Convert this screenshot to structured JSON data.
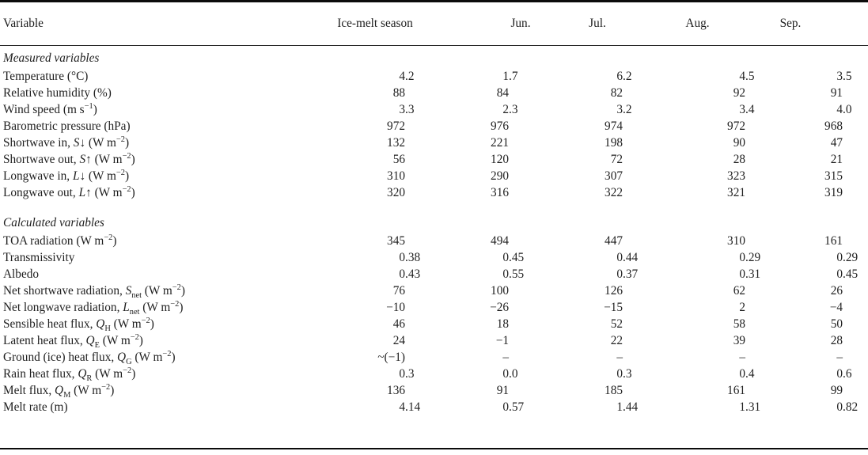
{
  "colors": {
    "text": "#1f1f1f",
    "rule": "#0c0c0c",
    "background": "#ffffff"
  },
  "table": {
    "columns": [
      "Variable",
      "Ice-melt season",
      "Jun.",
      "Jul.",
      "Aug.",
      "Sep."
    ],
    "sections": [
      {
        "title": "Measured variables",
        "rows": [
          {
            "label": [
              [
                "",
                "Temperature (°C)"
              ]
            ],
            "values": [
              "4.2",
              "1.7",
              "6.2",
              "4.5",
              "3.5"
            ]
          },
          {
            "label": [
              [
                "",
                "Relative humidity (%)"
              ]
            ],
            "values": [
              "88",
              "84",
              "82",
              "92",
              "91"
            ]
          },
          {
            "label": [
              [
                "",
                "Wind speed (m s"
              ],
              [
                "sup",
                "−1"
              ],
              [
                "",
                ")"
              ]
            ],
            "values": [
              "3.3",
              "2.3",
              "3.2",
              "3.4",
              "4.0"
            ]
          },
          {
            "label": [
              [
                "",
                "Barometric pressure (hPa)"
              ]
            ],
            "values": [
              "972",
              "976",
              "974",
              "972",
              "968"
            ]
          },
          {
            "label": [
              [
                "",
                "Shortwave in, "
              ],
              [
                "i",
                "S"
              ],
              [
                "",
                "↓ (W m"
              ],
              [
                "sup",
                "−2"
              ],
              [
                "",
                ")"
              ]
            ],
            "values": [
              "132",
              "221",
              "198",
              "90",
              "47"
            ]
          },
          {
            "label": [
              [
                "",
                "Shortwave out, "
              ],
              [
                "i",
                "S"
              ],
              [
                "",
                "↑ (W m"
              ],
              [
                "sup",
                "−2"
              ],
              [
                "",
                ")"
              ]
            ],
            "values": [
              "56",
              "120",
              "72",
              "28",
              "21"
            ]
          },
          {
            "label": [
              [
                "",
                "Longwave in, "
              ],
              [
                "i",
                "L"
              ],
              [
                "",
                "↓ (W m"
              ],
              [
                "sup",
                "−2"
              ],
              [
                "",
                ")"
              ]
            ],
            "values": [
              "310",
              "290",
              "307",
              "323",
              "315"
            ]
          },
          {
            "label": [
              [
                "",
                "Longwave out, "
              ],
              [
                "i",
                "L"
              ],
              [
                "",
                "↑ (W m"
              ],
              [
                "sup",
                "−2"
              ],
              [
                "",
                ")"
              ]
            ],
            "values": [
              "320",
              "316",
              "322",
              "321",
              "319"
            ]
          }
        ]
      },
      {
        "title": "Calculated variables",
        "rows": [
          {
            "label": [
              [
                "",
                "TOA radiation (W m"
              ],
              [
                "sup",
                "−2"
              ],
              [
                "",
                ")"
              ]
            ],
            "values": [
              "345",
              "494",
              "447",
              "310",
              "161"
            ]
          },
          {
            "label": [
              [
                "",
                "Transmissivity"
              ]
            ],
            "values": [
              "0.38",
              "0.45",
              "0.44",
              "0.29",
              "0.29"
            ]
          },
          {
            "label": [
              [
                "",
                "Albedo"
              ]
            ],
            "values": [
              "0.43",
              "0.55",
              "0.37",
              "0.31",
              "0.45"
            ]
          },
          {
            "label": [
              [
                "",
                "Net shortwave radiation, "
              ],
              [
                "i",
                "S"
              ],
              [
                "sub",
                "net"
              ],
              [
                "",
                " (W m"
              ],
              [
                "sup",
                "−2"
              ],
              [
                "",
                ")"
              ]
            ],
            "values": [
              "76",
              "100",
              "126",
              "62",
              "26"
            ]
          },
          {
            "label": [
              [
                "",
                "Net longwave radiation, "
              ],
              [
                "i",
                "L"
              ],
              [
                "sub",
                "net"
              ],
              [
                "",
                " (W m"
              ],
              [
                "sup",
                "−2"
              ],
              [
                "",
                ")"
              ]
            ],
            "values": [
              "−10",
              "−26",
              "−15",
              "2",
              "−4"
            ]
          },
          {
            "label": [
              [
                "",
                "Sensible heat flux, "
              ],
              [
                "i",
                "Q"
              ],
              [
                "sub",
                "H"
              ],
              [
                "",
                " (W m"
              ],
              [
                "sup",
                "−2"
              ],
              [
                "",
                ")"
              ]
            ],
            "values": [
              "46",
              "18",
              "52",
              "58",
              "50"
            ]
          },
          {
            "label": [
              [
                "",
                "Latent heat flux, "
              ],
              [
                "i",
                "Q"
              ],
              [
                "sub",
                "E"
              ],
              [
                "",
                " (W m"
              ],
              [
                "sup",
                "−2"
              ],
              [
                "",
                ")"
              ]
            ],
            "values": [
              "24",
              "−1",
              "22",
              "39",
              "28"
            ]
          },
          {
            "label": [
              [
                "",
                "Ground (ice) heat flux, "
              ],
              [
                "i",
                "Q"
              ],
              [
                "sub",
                "G"
              ],
              [
                "",
                " (W m"
              ],
              [
                "sup",
                "−2"
              ],
              [
                "",
                ")"
              ]
            ],
            "values": [
              "~(−1)",
              "–",
              "–",
              "–",
              "–"
            ]
          },
          {
            "label": [
              [
                "",
                "Rain heat flux, "
              ],
              [
                "i",
                "Q"
              ],
              [
                "sub",
                "R"
              ],
              [
                "",
                " (W m"
              ],
              [
                "sup",
                "−2"
              ],
              [
                "",
                ")"
              ]
            ],
            "values": [
              "0.3",
              "0.0",
              "0.3",
              "0.4",
              "0.6"
            ]
          },
          {
            "label": [
              [
                "",
                "Melt flux, "
              ],
              [
                "i",
                "Q"
              ],
              [
                "sub",
                "M"
              ],
              [
                "",
                " (W m"
              ],
              [
                "sup",
                "−2"
              ],
              [
                "",
                ")"
              ]
            ],
            "values": [
              "136",
              "91",
              "185",
              "161",
              "99"
            ]
          },
          {
            "label": [
              [
                "",
                "Melt rate (m)"
              ]
            ],
            "values": [
              "4.14",
              "0.57",
              "1.44",
              "1.31",
              "0.82"
            ]
          }
        ]
      }
    ]
  }
}
